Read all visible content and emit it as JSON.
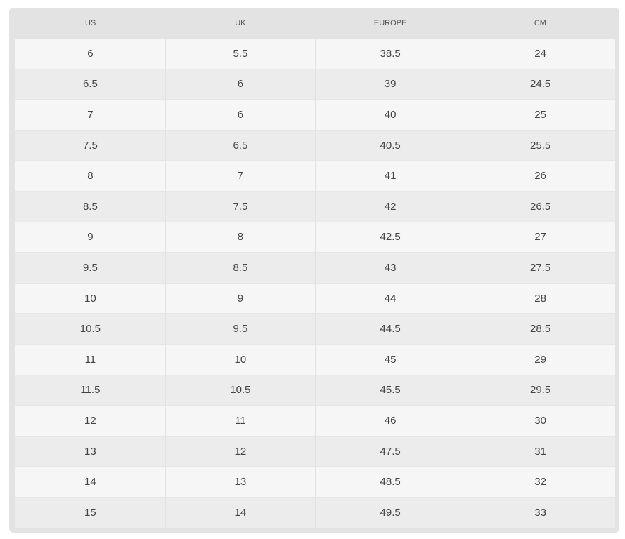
{
  "table": {
    "headers": [
      "US",
      "UK",
      "EUROPE",
      "CM"
    ],
    "rows": [
      [
        "6",
        "5.5",
        "38.5",
        "24"
      ],
      [
        "6.5",
        "6",
        "39",
        "24.5"
      ],
      [
        "7",
        "6",
        "40",
        "25"
      ],
      [
        "7.5",
        "6.5",
        "40.5",
        "25.5"
      ],
      [
        "8",
        "7",
        "41",
        "26"
      ],
      [
        "8.5",
        "7.5",
        "42",
        "26.5"
      ],
      [
        "9",
        "8",
        "42.5",
        "27"
      ],
      [
        "9.5",
        "8.5",
        "43",
        "27.5"
      ],
      [
        "10",
        "9",
        "44",
        "28"
      ],
      [
        "10.5",
        "9.5",
        "44.5",
        "28.5"
      ],
      [
        "11",
        "10",
        "45",
        "29"
      ],
      [
        "11.5",
        "10.5",
        "45.5",
        "29.5"
      ],
      [
        "12",
        "11",
        "46",
        "30"
      ],
      [
        "13",
        "12",
        "47.5",
        "31"
      ],
      [
        "14",
        "13",
        "48.5",
        "32"
      ],
      [
        "15",
        "14",
        "49.5",
        "33"
      ]
    ]
  }
}
